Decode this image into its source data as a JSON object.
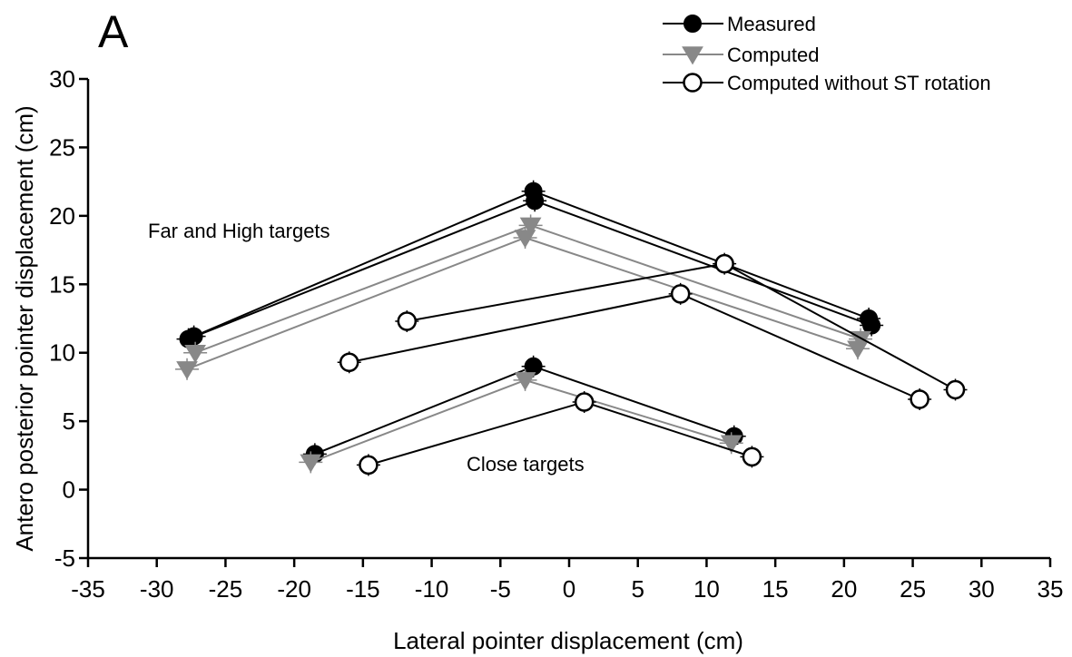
{
  "panel_label": "A",
  "chart_data": {
    "type": "scatter",
    "xlabel": "Lateral pointer displacement (cm)",
    "ylabel": "Antero posterior pointer displacement (cm)",
    "xlim": [
      -35,
      35
    ],
    "ylim": [
      -5,
      30
    ],
    "xticks": [
      -35,
      -30,
      -25,
      -20,
      -15,
      -10,
      -5,
      0,
      5,
      10,
      15,
      20,
      25,
      30,
      35
    ],
    "yticks": [
      -5,
      0,
      5,
      10,
      15,
      20,
      25,
      30
    ],
    "grid": false,
    "legend_position": "top-right",
    "annotations": [
      "Far and High targets",
      "Close targets"
    ],
    "legend": [
      {
        "name": "Measured",
        "color": "#000000",
        "marker": "filled-circle"
      },
      {
        "name": "Computed",
        "color": "#888888",
        "marker": "filled-triangle-down"
      },
      {
        "name": "Computed without ST rotation",
        "color": "#000000",
        "marker": "open-circle"
      }
    ],
    "series": [
      {
        "name": "Measured",
        "color": "#000000",
        "marker": "filled-circle",
        "x": [
          -27.3,
          -2.6,
          21.8
        ],
        "y": [
          11.2,
          21.8,
          12.5
        ]
      },
      {
        "name": "Measured",
        "color": "#000000",
        "marker": "filled-circle",
        "x": [
          -27.7,
          -2.5,
          22.0
        ],
        "y": [
          11.0,
          21.1,
          12.0
        ]
      },
      {
        "name": "Computed",
        "color": "#888888",
        "marker": "filled-triangle-down",
        "x": [
          -27.2,
          -2.8,
          21.2
        ],
        "y": [
          10.0,
          19.3,
          11.0
        ]
      },
      {
        "name": "Computed",
        "color": "#888888",
        "marker": "filled-triangle-down",
        "x": [
          -27.8,
          -3.2,
          21.0
        ],
        "y": [
          8.8,
          18.4,
          10.3
        ]
      },
      {
        "name": "Computed without ST rotation",
        "color": "#000000",
        "marker": "open-circle",
        "x": [
          -11.8,
          11.3,
          28.1
        ],
        "y": [
          12.3,
          16.5,
          7.3
        ]
      },
      {
        "name": "Computed without ST rotation",
        "color": "#000000",
        "marker": "open-circle",
        "x": [
          -16.0,
          8.1,
          25.5
        ],
        "y": [
          9.3,
          14.3,
          6.6
        ]
      },
      {
        "name": "Measured",
        "color": "#000000",
        "marker": "filled-circle",
        "x": [
          -18.5,
          -2.6,
          12.0
        ],
        "y": [
          2.6,
          9.0,
          3.9
        ]
      },
      {
        "name": "Computed",
        "color": "#888888",
        "marker": "filled-triangle-down",
        "x": [
          -18.8,
          -3.2,
          11.8
        ],
        "y": [
          2.0,
          8.0,
          3.4
        ]
      },
      {
        "name": "Computed without ST rotation",
        "color": "#000000",
        "marker": "open-circle",
        "x": [
          -14.6,
          1.1,
          13.3
        ],
        "y": [
          1.8,
          6.4,
          2.4
        ]
      }
    ]
  }
}
